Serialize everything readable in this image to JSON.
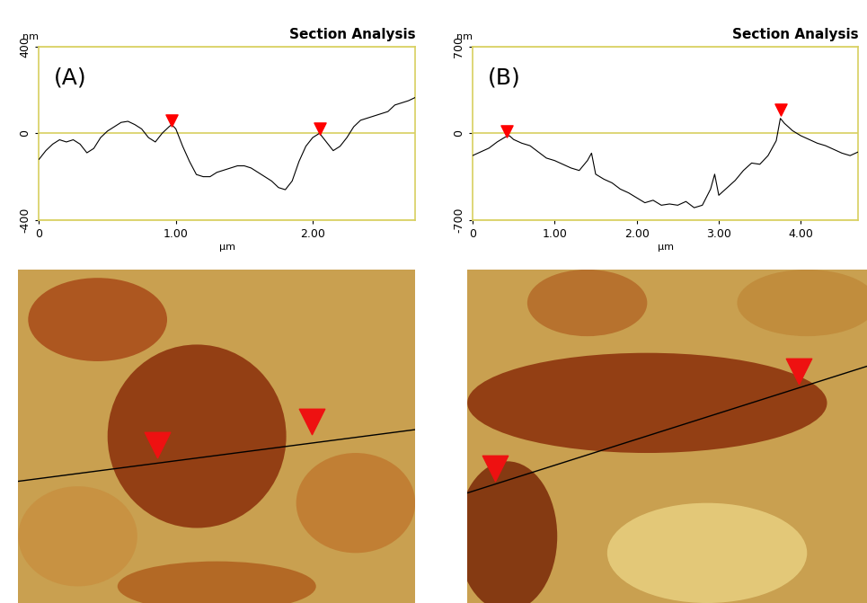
{
  "chart_data": [
    {
      "type": "line",
      "title": "Section Analysis",
      "annotations": [
        "(A)"
      ],
      "x_label": "µm",
      "y_label": "nm",
      "xlim": [
        0,
        2.75
      ],
      "ylim": [
        -400,
        400
      ],
      "xticks": [
        0,
        {
          "value": 1,
          "label": "1.00"
        },
        {
          "value": 2,
          "label": "2.00"
        }
      ],
      "yticks": [
        -400,
        0,
        400
      ],
      "grid": true,
      "tick_labels": true,
      "series": [
        {
          "type": "line",
          "color": "#000000",
          "x": [
            0,
            0.05,
            0.1,
            0.15,
            0.2,
            0.25,
            0.3,
            0.35,
            0.4,
            0.45,
            0.5,
            0.55,
            0.6,
            0.65,
            0.7,
            0.75,
            0.8,
            0.85,
            0.9,
            0.95,
            0.97,
            1.0,
            1.05,
            1.1,
            1.15,
            1.2,
            1.25,
            1.3,
            1.35,
            1.4,
            1.45,
            1.5,
            1.55,
            1.6,
            1.65,
            1.7,
            1.75,
            1.8,
            1.85,
            1.9,
            1.95,
            2.0,
            2.05,
            2.1,
            2.15,
            2.2,
            2.25,
            2.3,
            2.35,
            2.4,
            2.45,
            2.5,
            2.55,
            2.6,
            2.65,
            2.7,
            2.75
          ],
          "values": [
            -120,
            -80,
            -50,
            -30,
            -40,
            -30,
            -50,
            -90,
            -70,
            -20,
            10,
            30,
            50,
            55,
            40,
            20,
            -20,
            -40,
            0,
            30,
            40,
            20,
            -60,
            -130,
            -190,
            -200,
            -200,
            -180,
            -170,
            -160,
            -150,
            -150,
            -160,
            -180,
            -200,
            -220,
            -250,
            -260,
            -220,
            -130,
            -60,
            -20,
            0,
            -40,
            -80,
            -60,
            -20,
            30,
            60,
            70,
            80,
            90,
            100,
            130,
            140,
            150,
            165
          ]
        },
        {
          "type": "scatter",
          "marker": "v",
          "color": "#ff0000",
          "x": [
            0.97,
            2.05
          ],
          "values": [
            60,
            20
          ]
        }
      ]
    },
    {
      "type": "line",
      "title": "Section Analysis",
      "annotations": [
        "(B)"
      ],
      "x_label": "µm",
      "y_label": "nm",
      "xlim": [
        0,
        4.7
      ],
      "ylim": [
        -700,
        700
      ],
      "xticks": [
        0,
        {
          "value": 1,
          "label": "1.00"
        },
        {
          "value": 2,
          "label": "2.00"
        },
        {
          "value": 3,
          "label": "3.00"
        },
        {
          "value": 4,
          "label": "4.00"
        }
      ],
      "yticks": [
        -700,
        0,
        700
      ],
      "grid": true,
      "tick_labels": true,
      "series": [
        {
          "type": "line",
          "color": "#000000",
          "x": [
            0,
            0.1,
            0.2,
            0.3,
            0.4,
            0.45,
            0.5,
            0.6,
            0.7,
            0.8,
            0.9,
            1.0,
            1.1,
            1.2,
            1.3,
            1.4,
            1.45,
            1.5,
            1.6,
            1.7,
            1.8,
            1.9,
            2.0,
            2.1,
            2.2,
            2.3,
            2.4,
            2.5,
            2.6,
            2.7,
            2.8,
            2.9,
            2.95,
            3.0,
            3.1,
            3.2,
            3.3,
            3.4,
            3.5,
            3.6,
            3.7,
            3.75,
            3.8,
            3.9,
            4.0,
            4.1,
            4.2,
            4.3,
            4.4,
            4.5,
            4.6,
            4.7
          ],
          "values": [
            -180,
            -150,
            -120,
            -70,
            -30,
            -20,
            -50,
            -80,
            -100,
            -150,
            -200,
            -220,
            -250,
            -280,
            -300,
            -220,
            -160,
            -330,
            -370,
            -400,
            -450,
            -480,
            -520,
            -560,
            -540,
            -580,
            -570,
            -580,
            -550,
            -600,
            -580,
            -450,
            -330,
            -500,
            -440,
            -380,
            -300,
            -240,
            -250,
            -180,
            -60,
            120,
            80,
            20,
            -20,
            -50,
            -80,
            -100,
            -130,
            -160,
            -180,
            -150
          ]
        },
        {
          "type": "scatter",
          "marker": "v",
          "color": "#ff0000",
          "x": [
            0.42,
            3.76
          ],
          "values": [
            20,
            190
          ]
        }
      ]
    }
  ]
}
